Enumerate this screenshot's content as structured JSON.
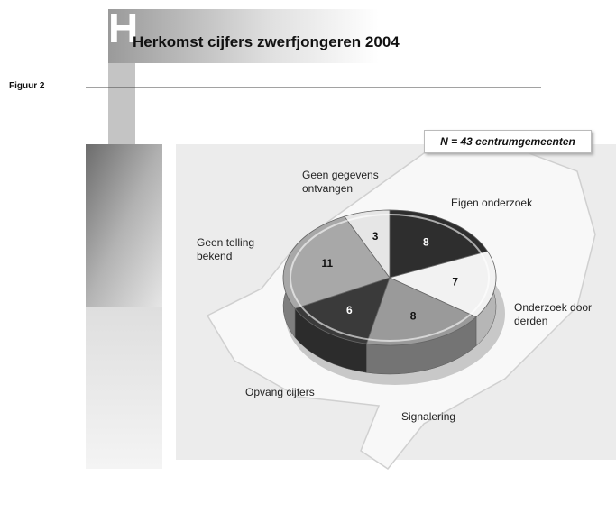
{
  "header_letter": "H",
  "figure_label": "Figuur 2",
  "chart_data": {
    "type": "pie",
    "title": "Herkomst cijfers zwerfjongeren 2004",
    "annotation": "N = 43 centrumgemeenten",
    "categories": [
      "Eigen onderzoek",
      "Onderzoek door derden",
      "Signalering",
      "Opvang cijfers",
      "Geen telling bekend",
      "Geen gegevens ontvangen"
    ],
    "values": [
      8,
      7,
      8,
      6,
      11,
      3
    ],
    "colors": [
      "#2e2e2e",
      "#f2f2f2",
      "#9a9a9a",
      "#3a3a3a",
      "#a8a8a8",
      "#e6e6e6"
    ]
  }
}
